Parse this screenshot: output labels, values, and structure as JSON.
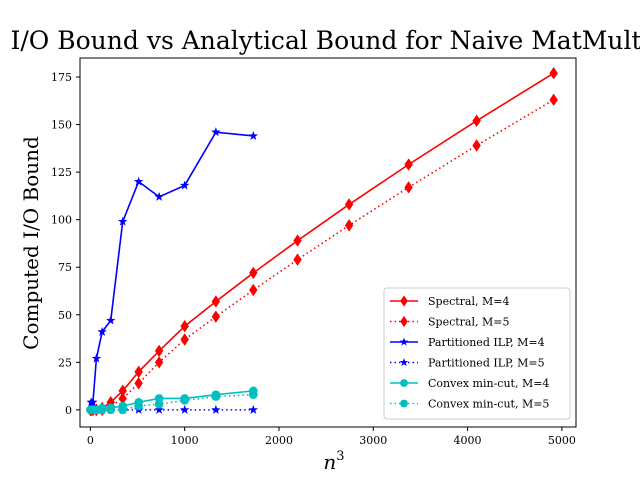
{
  "chart_data": {
    "type": "line",
    "title": "I/O Bound vs Analytical Bound for Naive MatMult",
    "xlabel": "n^3",
    "ylabel": "Computed I/O Bound",
    "xlim": [
      -110,
      5150
    ],
    "ylim": [
      -9,
      185
    ],
    "xticks": [
      0,
      1000,
      2000,
      3000,
      4000,
      5000
    ],
    "yticks": [
      0,
      25,
      50,
      75,
      100,
      125,
      150,
      175
    ],
    "grid": false,
    "legend_position": "lower-right",
    "series": [
      {
        "name": "Spectral, M=4",
        "color": "#ff0000",
        "linestyle": "solid",
        "marker": "diamond",
        "x": [
          1,
          8,
          27,
          64,
          125,
          216,
          343,
          512,
          729,
          1000,
          1331,
          1728,
          2197,
          2744,
          3375,
          4096,
          4913
        ],
        "y": [
          0,
          0,
          0,
          0,
          1,
          4,
          10,
          20,
          31,
          44,
          57,
          72,
          89,
          108,
          129,
          152,
          177
        ]
      },
      {
        "name": "Spectral, M=5",
        "color": "#ff0000",
        "linestyle": "dotted",
        "marker": "diamond",
        "x": [
          1,
          8,
          27,
          64,
          125,
          216,
          343,
          512,
          729,
          1000,
          1331,
          1728,
          2197,
          2744,
          3375,
          4096,
          4913
        ],
        "y": [
          0,
          0,
          0,
          0,
          0,
          2,
          6,
          14,
          25,
          37,
          49,
          63,
          79,
          97,
          117,
          139,
          163
        ]
      },
      {
        "name": "Partitioned ILP, M=4",
        "color": "#0000ff",
        "linestyle": "solid",
        "marker": "star",
        "x": [
          8,
          27,
          64,
          125,
          216,
          343,
          512,
          729,
          1000,
          1331,
          1728
        ],
        "y": [
          4,
          4,
          27,
          41,
          47,
          99,
          120,
          112,
          118,
          146,
          144
        ]
      },
      {
        "name": "Partitioned ILP, M=5",
        "color": "#0000ff",
        "linestyle": "dotted",
        "marker": "star",
        "x": [
          8,
          27,
          64,
          125,
          216,
          343,
          512,
          729,
          1000,
          1331,
          1728
        ],
        "y": [
          0,
          0,
          0,
          0,
          0,
          0,
          0,
          0,
          0,
          0,
          0
        ]
      },
      {
        "name": "Convex min-cut, M=4",
        "color": "#00bfbf",
        "linestyle": "solid",
        "marker": "circle",
        "x": [
          1,
          8,
          27,
          64,
          125,
          216,
          343,
          512,
          729,
          1000,
          1331,
          1728
        ],
        "y": [
          0,
          0,
          0,
          0,
          1,
          1,
          2,
          4,
          6,
          6,
          8,
          10
        ]
      },
      {
        "name": "Convex min-cut, M=5",
        "color": "#00bfbf",
        "linestyle": "dotted",
        "marker": "circle",
        "x": [
          1,
          8,
          27,
          64,
          125,
          216,
          343,
          512,
          729,
          1000,
          1331,
          1728
        ],
        "y": [
          0,
          0,
          0,
          0,
          0,
          0,
          0,
          2,
          3,
          5,
          7,
          8
        ]
      }
    ]
  }
}
